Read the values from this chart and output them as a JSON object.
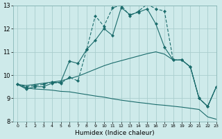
{
  "xlabel": "Humidex (Indice chaleur)",
  "xlim": [
    -0.5,
    23
  ],
  "ylim": [
    8,
    13
  ],
  "yticks": [
    8,
    9,
    10,
    11,
    12,
    13
  ],
  "xticks": [
    0,
    1,
    2,
    3,
    4,
    5,
    6,
    7,
    8,
    9,
    10,
    11,
    12,
    13,
    14,
    15,
    16,
    17,
    18,
    19,
    20,
    21,
    22,
    23
  ],
  "bg_color": "#ceeaea",
  "line_color": "#1a6b6b",
  "grid_color": "#aacece",
  "curve_solid_marker": [
    9.6,
    9.4,
    9.5,
    9.5,
    9.65,
    9.7,
    10.6,
    10.5,
    11.1,
    11.5,
    12.0,
    11.7,
    12.9,
    12.6,
    12.7,
    12.85,
    12.2,
    11.2,
    10.65,
    10.65,
    10.35,
    9.0,
    8.65,
    9.5
  ],
  "curve_dashed_marker": [
    9.6,
    9.5,
    9.55,
    9.6,
    9.7,
    9.65,
    9.9,
    9.75,
    11.1,
    12.55,
    12.1,
    12.9,
    13.0,
    12.55,
    12.75,
    13.05,
    12.85,
    12.75,
    10.65,
    10.65,
    10.35,
    9.0,
    8.65,
    9.5
  ],
  "curve_up": [
    9.6,
    9.55,
    9.6,
    9.65,
    9.7,
    9.75,
    9.85,
    9.95,
    10.1,
    10.25,
    10.4,
    10.52,
    10.62,
    10.72,
    10.82,
    10.92,
    11.0,
    10.9,
    10.65,
    10.65,
    10.35,
    9.0,
    8.65,
    9.5
  ],
  "curve_down": [
    9.6,
    9.45,
    9.4,
    9.38,
    9.35,
    9.3,
    9.28,
    9.22,
    9.16,
    9.1,
    9.05,
    8.98,
    8.92,
    8.87,
    8.82,
    8.78,
    8.73,
    8.7,
    8.66,
    8.62,
    8.57,
    8.52,
    8.2,
    8.1
  ]
}
